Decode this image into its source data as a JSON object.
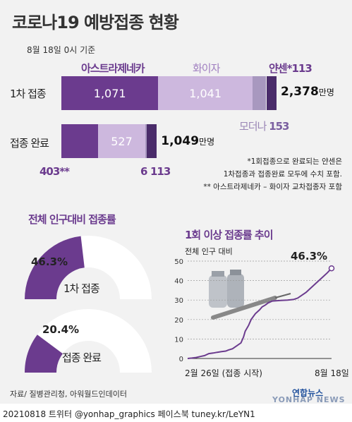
{
  "title": "코로나19 예방접종 현황",
  "date": "8월 18일 0시 기준",
  "colors": {
    "astrazeneca": "#6b3b8e",
    "pfizer": "#cdb8de",
    "moderna": "#a898bf",
    "janssen": "#4a2c6a",
    "accent": "#6b3b8e"
  },
  "bar_chart": {
    "chart_data": {
      "type": "bar",
      "orientation": "horizontal",
      "stacked": true,
      "categories": [
        "1차 접종",
        "접종 완료"
      ],
      "series": [
        {
          "name": "아스트라제네카",
          "values": [
            1071,
            403
          ]
        },
        {
          "name": "화이자",
          "values": [
            1041,
            527
          ]
        },
        {
          "name": "모더나",
          "values": [
            153,
            6
          ]
        },
        {
          "name": "얀센*",
          "values": [
            113,
            113
          ]
        }
      ],
      "totals": [
        "2,378",
        "1,049"
      ],
      "total_unit": "만명",
      "value_labels": {
        "first": [
          "1,071",
          "1,041",
          "153",
          "113"
        ],
        "complete": [
          "403**",
          "527",
          "6",
          "113"
        ]
      }
    }
  },
  "notes": {
    "line1": "*1회접종으로 완료되는 얀센은",
    "line2": "1차접종과 접종완료 모두에 수치 포함.",
    "line3": "** 아스트라제네카 – 화이자 교차접종자 포함"
  },
  "gauges": {
    "title": "전체 인구대비 접종률",
    "items": [
      {
        "label": "1차 접종",
        "pct_label": "46.3%",
        "value": 46.3
      },
      {
        "label": "접종 완료",
        "pct_label": "20.4%",
        "value": 20.4
      }
    ]
  },
  "trend": {
    "title": "1회 이상 접종률 추이",
    "chart_data": {
      "type": "line",
      "ylabel": "전체 인구 대비",
      "ylim": [
        0,
        50
      ],
      "yticks": [
        "0",
        "10",
        "20",
        "30",
        "40",
        "50"
      ],
      "x_start_label": "2월 26일 (접종 시작)",
      "x_end_label": "8월 18일",
      "end_label": "46.3%",
      "points": [
        [
          0,
          0
        ],
        [
          5,
          0.2
        ],
        [
          10,
          0.5
        ],
        [
          15,
          1
        ],
        [
          20,
          1.5
        ],
        [
          25,
          2.5
        ],
        [
          30,
          2.8
        ],
        [
          35,
          3.2
        ],
        [
          40,
          3.5
        ],
        [
          45,
          3.8
        ],
        [
          48,
          4.3
        ],
        [
          53,
          5
        ],
        [
          58,
          6.5
        ],
        [
          63,
          8
        ],
        [
          66,
          11
        ],
        [
          68,
          14
        ],
        [
          72,
          17
        ],
        [
          75,
          20
        ],
        [
          80,
          23
        ],
        [
          85,
          25
        ],
        [
          88,
          26.5
        ],
        [
          92,
          27.5
        ],
        [
          95,
          28.5
        ],
        [
          100,
          29.5
        ],
        [
          110,
          29.8
        ],
        [
          118,
          30
        ],
        [
          125,
          30.3
        ],
        [
          130,
          31
        ],
        [
          135,
          32.5
        ],
        [
          140,
          34
        ],
        [
          145,
          36
        ],
        [
          150,
          38
        ],
        [
          155,
          40
        ],
        [
          160,
          42
        ],
        [
          165,
          44
        ],
        [
          170,
          46.3
        ]
      ]
    }
  },
  "source": "자료/ 질병관리청, 아워월드인데이터",
  "footer": "20210818 트위터 @yonhap_graphics 페이스북 tuney.kr/LeYN1",
  "logo": {
    "main": "연합뉴스",
    "watermark": "YONHAP NEWS"
  }
}
